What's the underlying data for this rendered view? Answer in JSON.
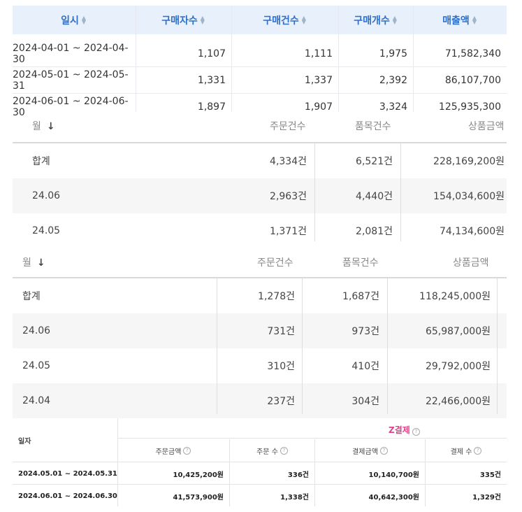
{
  "table1": {
    "headers": [
      "일시",
      "구매자수",
      "구매건수",
      "구매개수",
      "매출액"
    ],
    "rows": [
      [
        "2024-04-01 ~ 2024-04-30",
        "1,107",
        "1,111",
        "1,975",
        "71,582,340"
      ],
      [
        "2024-05-01 ~ 2024-05-31",
        "1,331",
        "1,337",
        "2,392",
        "86,107,700"
      ],
      [
        "2024-06-01 ~ 2024-06-30",
        "1,897",
        "1,907",
        "3,324",
        "125,935,300"
      ]
    ]
  },
  "table2": {
    "headers": [
      "월",
      "주문건수",
      "품목건수",
      "상품금액"
    ],
    "rows": [
      [
        "합계",
        "4,334건",
        "6,521건",
        "228,169,200원"
      ],
      [
        "24.06",
        "2,963건",
        "4,440건",
        "154,034,600원"
      ],
      [
        "24.05",
        "1,371건",
        "2,081건",
        "74,134,600원"
      ]
    ]
  },
  "table3": {
    "headers": [
      "월",
      "주문건수",
      "품목건수",
      "상품금액"
    ],
    "rows": [
      [
        "합계",
        "1,278건",
        "1,687건",
        "118,245,000원"
      ],
      [
        "24.06",
        "731건",
        "973건",
        "65,987,000원"
      ],
      [
        "24.05",
        "310건",
        "410건",
        "29,792,000원"
      ],
      [
        "24.04",
        "237건",
        "304건",
        "22,466,000원"
      ]
    ]
  },
  "table4": {
    "date_header": "일자",
    "group_logo": "Z",
    "group_header": "결제",
    "subheaders": [
      "주문금액",
      "주문 수",
      "결제금액",
      "결제 수"
    ],
    "rows": [
      [
        "2024.05.01 ~ 2024.05.31",
        "10,425,200원",
        "336건",
        "10,140,700원",
        "335건"
      ],
      [
        "2024.06.01 ~ 2024.06.30",
        "41,573,900원",
        "1,338건",
        "40,642,300원",
        "1,329건"
      ]
    ]
  },
  "colors": {
    "header_bg": "#e7f0fb",
    "header_text": "#2f6fc8",
    "accent_pink": "#e83e8c"
  }
}
